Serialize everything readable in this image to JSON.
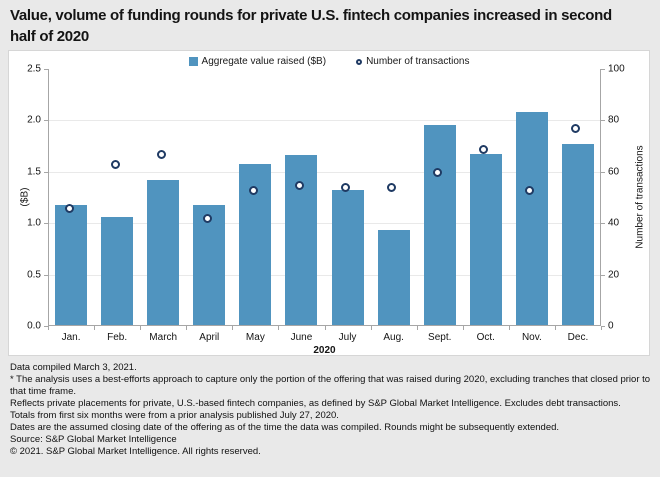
{
  "title": "Value, volume of funding rounds for private U.S. fintech companies increased in second half of 2020",
  "legend": [
    {
      "label": "Aggregate value raised ($B)",
      "marker": "square"
    },
    {
      "label": "Number of transactions",
      "marker": "circle-outline"
    }
  ],
  "chart_data": {
    "type": "bar",
    "categories": [
      "Jan.",
      "Feb.",
      "March",
      "April",
      "May",
      "June",
      "July",
      "Aug.",
      "Sept.",
      "Oct.",
      "Nov.",
      "Dec."
    ],
    "series": [
      {
        "name": "Aggregate value raised ($B)",
        "type": "bar",
        "axis": "left",
        "values": [
          1.18,
          1.06,
          1.42,
          1.18,
          1.58,
          1.66,
          1.32,
          0.93,
          1.96,
          1.67,
          2.08,
          1.77
        ]
      },
      {
        "name": "Number of transactions",
        "type": "scatter",
        "axis": "right",
        "values": [
          45,
          62,
          66,
          41,
          52,
          54,
          53,
          53,
          59,
          68,
          52,
          76
        ]
      }
    ],
    "left_axis": {
      "label": "($B)",
      "min": 0,
      "max": 2.5,
      "tick_values": [
        0,
        0.5,
        1,
        1.5,
        2,
        2.5
      ],
      "tick_labels": [
        "0.0",
        "0.5",
        "1.0",
        "1.5",
        "2.0",
        "2.5"
      ]
    },
    "right_axis": {
      "label": "Number of transactions",
      "min": 0,
      "max": 100,
      "tick_values": [
        0,
        20,
        40,
        60,
        80,
        100
      ],
      "tick_labels": [
        "0",
        "20",
        "40",
        "60",
        "80",
        "100"
      ]
    },
    "xlabel": "2020",
    "grid": "horizontal-light",
    "legend_position": "top-center"
  },
  "footnotes": [
    "Data compiled March 3, 2021.",
    "* The analysis uses a best-efforts approach to capture only the portion of the offering that was raised during 2020, excluding tranches that closed prior to that time frame.",
    "Reflects private placements for private, U.S.-based fintech companies, as defined by S&P Global Market Intelligence. Excludes debt transactions.",
    "Totals from first six months were from a prior analysis published July 27, 2020.",
    "Dates are the assumed closing date of the offering as of the time the data was compiled. Rounds might be subsequently extended.",
    "Source: S&P Global Market Intelligence",
    "© 2021. S&P Global Market Intelligence. All rights reserved."
  ],
  "colors": {
    "bar": "#5094bf",
    "marker_outline": "#1f3a63",
    "marker_fill": "#ffffff",
    "background": "#e9e9e9",
    "panel": "#ffffff",
    "axis": "#a6a6a6",
    "gridline": "#e9e9e9",
    "text": "#141414"
  }
}
